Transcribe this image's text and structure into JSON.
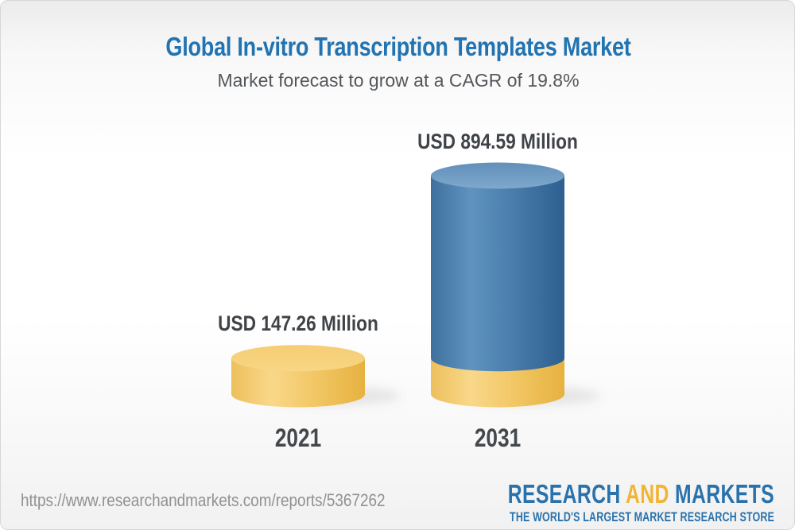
{
  "header": {
    "title": "Global In-vitro Transcription Templates Market",
    "subtitle": "Market forecast to grow at a CAGR of 19.8%",
    "title_color": "#2173b2"
  },
  "chart_data": {
    "type": "bar",
    "title": "Global In-vitro Transcription Templates Market",
    "subtitle": "Market forecast to grow at a CAGR of 19.8%",
    "cagr_percent": 19.8,
    "unit": "USD Million",
    "categories": [
      "2021",
      "2031"
    ],
    "values": [
      147.26,
      894.59
    ],
    "bars": [
      {
        "year": "2021",
        "value": 147.26,
        "label": "USD 147.26 Million",
        "body_color": "#f0c25e",
        "top_color": "#f6cf78"
      },
      {
        "year": "2031",
        "value": 894.59,
        "label": "USD 894.59 Million",
        "body_color": "#47779f",
        "top_color": "#6d9cc5",
        "base_color": "#f0c25e"
      }
    ],
    "legend_position": "none",
    "grid": false
  },
  "footer": {
    "url": "https://www.researchandmarkets.com/reports/5367262",
    "logo": {
      "part1": "RESEARCH",
      "part2": "AND",
      "part3": "MARKETS",
      "tagline": "THE WORLD'S LARGEST MARKET RESEARCH STORE",
      "blue": "#2a72ac",
      "gold": "#f1b434"
    }
  }
}
